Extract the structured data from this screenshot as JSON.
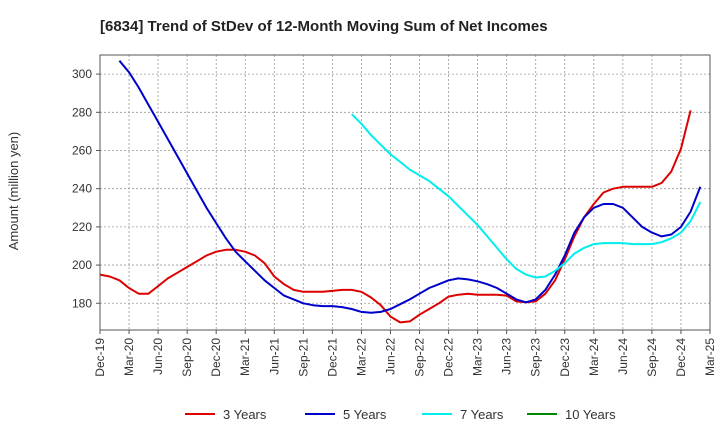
{
  "chart_data": {
    "type": "line",
    "title": "[6834]  Trend of StDev of 12-Month Moving Sum of Net Incomes",
    "ylabel": "Amount (million yen)",
    "xlabel": "",
    "x_start": "2019-12",
    "x_ticks": [
      "Dec-19",
      "Mar-20",
      "Jun-20",
      "Sep-20",
      "Dec-20",
      "Mar-21",
      "Jun-21",
      "Sep-21",
      "Dec-21",
      "Mar-22",
      "Jun-22",
      "Sep-22",
      "Dec-22",
      "Mar-23",
      "Jun-23",
      "Sep-23",
      "Dec-23",
      "Mar-24",
      "Jun-24",
      "Sep-24",
      "Dec-24",
      "Mar-25"
    ],
    "y_ticks": [
      180,
      200,
      220,
      240,
      260,
      280,
      300
    ],
    "ylim": [
      166,
      310
    ],
    "grid": true,
    "legend": "bottom",
    "series": [
      {
        "name": "3 Years",
        "color": "#dd0000",
        "points": [
          [
            "2019-12",
            195
          ],
          [
            "2020-01",
            194
          ],
          [
            "2020-02",
            192
          ],
          [
            "2020-03",
            188
          ],
          [
            "2020-04",
            185
          ],
          [
            "2020-05",
            185
          ],
          [
            "2020-06",
            189
          ],
          [
            "2020-07",
            193
          ],
          [
            "2020-08",
            196
          ],
          [
            "2020-09",
            199
          ],
          [
            "2020-10",
            202
          ],
          [
            "2020-11",
            205
          ],
          [
            "2020-12",
            207
          ],
          [
            "2021-01",
            208
          ],
          [
            "2021-02",
            208
          ],
          [
            "2021-03",
            207
          ],
          [
            "2021-04",
            205
          ],
          [
            "2021-05",
            201
          ],
          [
            "2021-06",
            194
          ],
          [
            "2021-07",
            190
          ],
          [
            "2021-08",
            187
          ],
          [
            "2021-09",
            186
          ],
          [
            "2021-10",
            186
          ],
          [
            "2021-11",
            186
          ],
          [
            "2021-12",
            186.5
          ],
          [
            "2022-01",
            187
          ],
          [
            "2022-02",
            187
          ],
          [
            "2022-03",
            186
          ],
          [
            "2022-04",
            183
          ],
          [
            "2022-05",
            179
          ],
          [
            "2022-06",
            173
          ],
          [
            "2022-07",
            170
          ],
          [
            "2022-08",
            170.5
          ],
          [
            "2022-09",
            174
          ],
          [
            "2022-10",
            177
          ],
          [
            "2022-11",
            180
          ],
          [
            "2022-12",
            183.5
          ],
          [
            "2023-01",
            184.5
          ],
          [
            "2023-02",
            185
          ],
          [
            "2023-03",
            184.5
          ],
          [
            "2023-04",
            184.5
          ],
          [
            "2023-05",
            184.5
          ],
          [
            "2023-06",
            184
          ],
          [
            "2023-07",
            181
          ],
          [
            "2023-08",
            180.5
          ],
          [
            "2023-09",
            181
          ],
          [
            "2023-10",
            185
          ],
          [
            "2023-11",
            192
          ],
          [
            "2023-12",
            203
          ],
          [
            "2024-01",
            215
          ],
          [
            "2024-02",
            225
          ],
          [
            "2024-03",
            232
          ],
          [
            "2024-04",
            238
          ],
          [
            "2024-05",
            240
          ],
          [
            "2024-06",
            241
          ],
          [
            "2024-07",
            241
          ],
          [
            "2024-08",
            241
          ],
          [
            "2024-09",
            241
          ],
          [
            "2024-10",
            243
          ],
          [
            "2024-11",
            249
          ],
          [
            "2024-12",
            261
          ],
          [
            "2025-01",
            281
          ]
        ]
      },
      {
        "name": "5 Years",
        "color": "#0000cc",
        "points": [
          [
            "2020-02",
            307
          ],
          [
            "2020-03",
            301
          ],
          [
            "2020-04",
            293
          ],
          [
            "2020-05",
            284
          ],
          [
            "2020-06",
            275
          ],
          [
            "2020-07",
            266
          ],
          [
            "2020-08",
            257
          ],
          [
            "2020-09",
            248
          ],
          [
            "2020-10",
            239
          ],
          [
            "2020-11",
            230
          ],
          [
            "2020-12",
            222
          ],
          [
            "2021-01",
            214
          ],
          [
            "2021-02",
            207
          ],
          [
            "2021-03",
            202
          ],
          [
            "2021-04",
            197
          ],
          [
            "2021-05",
            192
          ],
          [
            "2021-06",
            188
          ],
          [
            "2021-07",
            184
          ],
          [
            "2021-08",
            182
          ],
          [
            "2021-09",
            180
          ],
          [
            "2021-10",
            179
          ],
          [
            "2021-11",
            178.5
          ],
          [
            "2021-12",
            178.5
          ],
          [
            "2022-01",
            178
          ],
          [
            "2022-02",
            177
          ],
          [
            "2022-03",
            175.5
          ],
          [
            "2022-04",
            175
          ],
          [
            "2022-05",
            175.5
          ],
          [
            "2022-06",
            177
          ],
          [
            "2022-07",
            179.5
          ],
          [
            "2022-08",
            182
          ],
          [
            "2022-09",
            185
          ],
          [
            "2022-10",
            188
          ],
          [
            "2022-11",
            190
          ],
          [
            "2022-12",
            192
          ],
          [
            "2023-01",
            193
          ],
          [
            "2023-02",
            192.5
          ],
          [
            "2023-03",
            191.5
          ],
          [
            "2023-04",
            190
          ],
          [
            "2023-05",
            188
          ],
          [
            "2023-06",
            185
          ],
          [
            "2023-07",
            182
          ],
          [
            "2023-08",
            180.5
          ],
          [
            "2023-09",
            182
          ],
          [
            "2023-10",
            187
          ],
          [
            "2023-11",
            195
          ],
          [
            "2023-12",
            205
          ],
          [
            "2024-01",
            217
          ],
          [
            "2024-02",
            225
          ],
          [
            "2024-03",
            230
          ],
          [
            "2024-04",
            232
          ],
          [
            "2024-05",
            232
          ],
          [
            "2024-06",
            230
          ],
          [
            "2024-07",
            225
          ],
          [
            "2024-08",
            220
          ],
          [
            "2024-09",
            217
          ],
          [
            "2024-10",
            215
          ],
          [
            "2024-11",
            216
          ],
          [
            "2024-12",
            220
          ],
          [
            "2025-01",
            228
          ],
          [
            "2025-02",
            241
          ]
        ]
      },
      {
        "name": "7 Years",
        "color": "#00eeee",
        "points": [
          [
            "2022-02",
            279
          ],
          [
            "2022-03",
            274
          ],
          [
            "2022-04",
            268
          ],
          [
            "2022-05",
            263
          ],
          [
            "2022-06",
            258
          ],
          [
            "2022-07",
            254
          ],
          [
            "2022-08",
            250
          ],
          [
            "2022-09",
            247
          ],
          [
            "2022-10",
            244
          ],
          [
            "2022-11",
            240
          ],
          [
            "2022-12",
            236
          ],
          [
            "2023-01",
            231
          ],
          [
            "2023-02",
            226
          ],
          [
            "2023-03",
            221
          ],
          [
            "2023-04",
            215
          ],
          [
            "2023-05",
            209
          ],
          [
            "2023-06",
            203
          ],
          [
            "2023-07",
            198
          ],
          [
            "2023-08",
            195
          ],
          [
            "2023-09",
            193.5
          ],
          [
            "2023-10",
            194
          ],
          [
            "2023-11",
            197
          ],
          [
            "2023-12",
            201
          ],
          [
            "2024-01",
            206
          ],
          [
            "2024-02",
            209
          ],
          [
            "2024-03",
            211
          ],
          [
            "2024-04",
            211.5
          ],
          [
            "2024-05",
            211.5
          ],
          [
            "2024-06",
            211.5
          ],
          [
            "2024-07",
            211
          ],
          [
            "2024-08",
            211
          ],
          [
            "2024-09",
            211
          ],
          [
            "2024-10",
            212
          ],
          [
            "2024-11",
            214
          ],
          [
            "2024-12",
            217
          ],
          [
            "2025-01",
            223
          ],
          [
            "2025-02",
            233
          ]
        ]
      },
      {
        "name": "10 Years",
        "color": "#008800",
        "points": []
      }
    ]
  }
}
